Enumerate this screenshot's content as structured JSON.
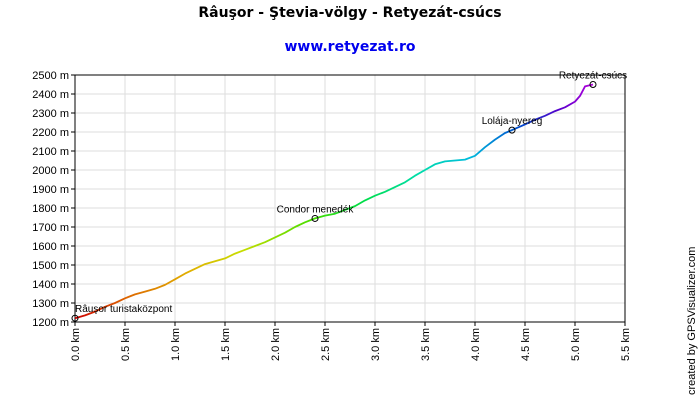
{
  "title": "Râuşor - Ştevia-völgy - Retyezát-csúcs",
  "subtitle": "www.retyezat.ro",
  "credit": "created by GPSVisualizer.com",
  "colors": {
    "subtitle": "#0000ee",
    "grid": "#dddddd",
    "axis": "#000000"
  },
  "chart_data": {
    "type": "line",
    "title": "Râuşor - Ştevia-völgy - Retyezát-csúcs",
    "xlabel": "",
    "ylabel": "",
    "xlim": [
      0,
      5.5
    ],
    "ylim": [
      1200,
      2500
    ],
    "x_ticks": [
      "0.0 km",
      "0.5 km",
      "1.0 km",
      "1.5 km",
      "2.0 km",
      "2.5 km",
      "3.0 km",
      "3.5 km",
      "4.0 km",
      "4.5 km",
      "5.0 km",
      "5.5 km"
    ],
    "y_ticks": [
      "1200 m",
      "1300 m",
      "1400 m",
      "1500 m",
      "1600 m",
      "1700 m",
      "1800 m",
      "1900 m",
      "2000 m",
      "2100 m",
      "2200 m",
      "2300 m",
      "2400 m",
      "2500 m"
    ],
    "grid": true,
    "series": [
      {
        "x": [
          0.0,
          0.1,
          0.2,
          0.3,
          0.4,
          0.5,
          0.6,
          0.7,
          0.8,
          0.9,
          1.0,
          1.1,
          1.2,
          1.3,
          1.4,
          1.5,
          1.6,
          1.7,
          1.8,
          1.9,
          2.0,
          2.1,
          2.2,
          2.3,
          2.4,
          2.5,
          2.6,
          2.7,
          2.8,
          2.9,
          3.0,
          3.1,
          3.2,
          3.3,
          3.4,
          3.5,
          3.6,
          3.7,
          3.8,
          3.9,
          4.0,
          4.1,
          4.2,
          4.3,
          4.37,
          4.5,
          4.6,
          4.7,
          4.8,
          4.9,
          5.0,
          5.05,
          5.1,
          5.18
        ],
        "y": [
          1220,
          1235,
          1255,
          1280,
          1300,
          1325,
          1345,
          1360,
          1375,
          1395,
          1425,
          1455,
          1480,
          1505,
          1520,
          1535,
          1560,
          1580,
          1600,
          1620,
          1645,
          1670,
          1700,
          1725,
          1745,
          1760,
          1770,
          1790,
          1810,
          1840,
          1865,
          1885,
          1910,
          1935,
          1970,
          2000,
          2030,
          2045,
          2050,
          2055,
          2075,
          2120,
          2160,
          2195,
          2210,
          2240,
          2265,
          2285,
          2310,
          2330,
          2360,
          2390,
          2440,
          2450
        ]
      }
    ],
    "waypoints": [
      {
        "name": "Râuşor turistaközpont",
        "x": 0.0,
        "y": 1220
      },
      {
        "name": "Condor menedék",
        "x": 2.4,
        "y": 1745
      },
      {
        "name": "Lolája-nyereg",
        "x": 4.37,
        "y": 2210
      },
      {
        "name": "Retyezát-csúcs",
        "x": 5.18,
        "y": 2450
      }
    ]
  }
}
